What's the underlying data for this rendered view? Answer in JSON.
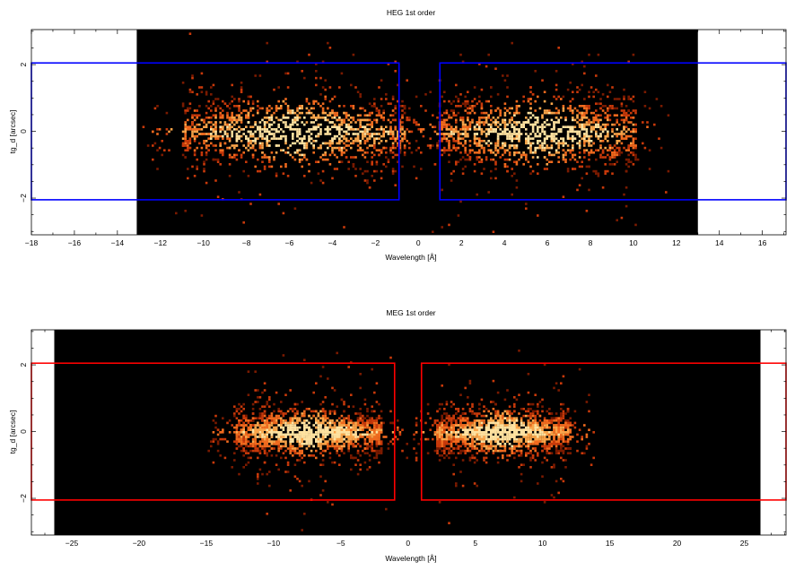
{
  "chart_data": [
    {
      "type": "heatmap",
      "title": "HEG 1st order",
      "xlabel": "Wavelength [Å]",
      "ylabel": "tg_d [arcsec]",
      "xlim": [
        -18,
        17.1
      ],
      "ylim": [
        -3.1,
        3.05
      ],
      "xticks": [
        -18,
        -16,
        -14,
        -12,
        -10,
        -8,
        -6,
        -4,
        -2,
        0,
        2,
        4,
        6,
        8,
        10,
        12,
        14,
        16
      ],
      "yticks": [
        -2,
        0,
        2
      ],
      "data_extent_x": [
        -13.1,
        13.0
      ],
      "region_color": "#0000ff",
      "regions": [
        {
          "x": [
            -18,
            -0.9
          ],
          "y": [
            -2.05,
            2.05
          ]
        },
        {
          "x": [
            1.0,
            17.1
          ],
          "y": [
            -2.05,
            2.05
          ]
        }
      ],
      "clusters": [
        {
          "x_center": -5.8,
          "x_halfwidth": 5.2,
          "y_sigma": 0.55,
          "density": 0.55
        },
        {
          "x_center": 5.5,
          "x_halfwidth": 4.6,
          "y_sigma": 0.55,
          "density": 0.55
        }
      ],
      "colormap": [
        "#000000",
        "#7a1a00",
        "#c8390a",
        "#f06a1e",
        "#fba54a",
        "#ffe2a0"
      ]
    },
    {
      "type": "heatmap",
      "title": "MEG 1st order",
      "xlabel": "Wavelength [Å]",
      "ylabel": "tg_d [arcsec]",
      "xlim": [
        -28,
        28.1
      ],
      "ylim": [
        -3.1,
        3.05
      ],
      "xticks": [
        -25,
        -20,
        -15,
        -10,
        -5,
        0,
        5,
        10,
        15,
        20,
        25
      ],
      "yticks": [
        -2,
        0,
        2
      ],
      "data_extent_x": [
        -26.3,
        26.2
      ],
      "region_color": "#ff0000",
      "regions": [
        {
          "x": [
            -28,
            -1.0
          ],
          "y": [
            -2.05,
            2.05
          ]
        },
        {
          "x": [
            1.0,
            28.1
          ],
          "y": [
            -2.05,
            2.05
          ]
        }
      ],
      "clusters": [
        {
          "x_center": -7.5,
          "x_halfwidth": 5.5,
          "y_sigma": 0.35,
          "density": 0.6
        },
        {
          "x_center": 7.0,
          "x_halfwidth": 5.0,
          "y_sigma": 0.35,
          "density": 0.6
        }
      ],
      "colormap": [
        "#000000",
        "#7a1a00",
        "#c8390a",
        "#f06a1e",
        "#fba54a",
        "#ffe2a0"
      ]
    }
  ]
}
